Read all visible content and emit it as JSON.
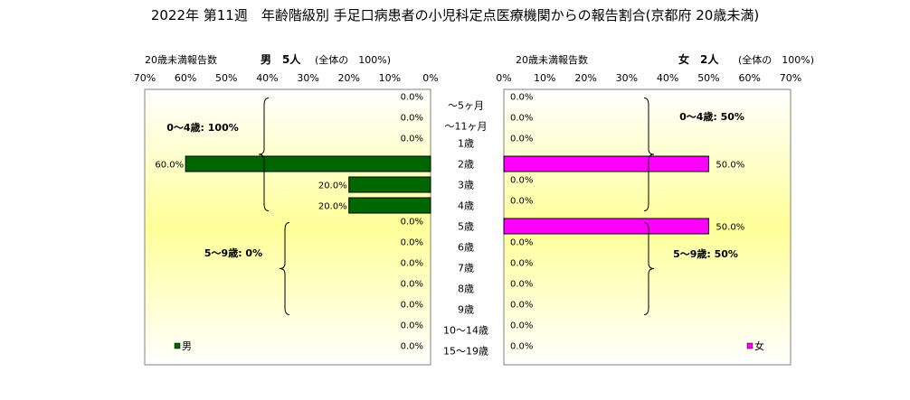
{
  "title": "2022年 第11週　年齢階級別 手足口病患者の小児科定点医療機関からの報告割合(京都府 20歳未満)",
  "chart_data": {
    "type": "bar",
    "categories": [
      "～5ヶ月",
      "～11ヶ月",
      "1歳",
      "2歳",
      "3歳",
      "4歳",
      "5歳",
      "6歳",
      "7歳",
      "8歳",
      "9歳",
      "10～14歳",
      "15～19歳"
    ],
    "series": [
      {
        "name": "男",
        "side": "left",
        "color": "#006600",
        "header_label": "20歳未満報告数",
        "header_count": "男　5人",
        "header_total": "(全体の　100%)",
        "values": [
          0,
          0,
          0,
          60,
          20,
          20,
          0,
          0,
          0,
          0,
          0,
          0,
          0
        ],
        "value_labels": [
          "0.0%",
          "0.0%",
          "0.0%",
          "60.0%",
          "20.0%",
          "20.0%",
          "0.0%",
          "0.0%",
          "0.0%",
          "0.0%",
          "0.0%",
          "0.0%",
          "0.0%"
        ],
        "legend": "男",
        "groups": [
          {
            "label": "0～4歳: 100%",
            "from": "～5ヶ月",
            "to": "4歳"
          },
          {
            "label": "5～9歳: 0%",
            "from": "5歳",
            "to": "9歳"
          }
        ]
      },
      {
        "name": "女",
        "side": "right",
        "color": "#ff00ff",
        "header_label": "20歳未満報告数",
        "header_count": "女　2人",
        "header_total": "(全体の　100%)",
        "values": [
          0,
          0,
          0,
          50,
          0,
          0,
          50,
          0,
          0,
          0,
          0,
          0,
          0
        ],
        "value_labels": [
          "0.0%",
          "0.0%",
          "0.0%",
          "50.0%",
          "0.0%",
          "0.0%",
          "50.0%",
          "0.0%",
          "0.0%",
          "0.0%",
          "0.0%",
          "0.0%",
          "0.0%"
        ],
        "legend": "女",
        "groups": [
          {
            "label": "0～4歳: 50%",
            "from": "～5ヶ月",
            "to": "4歳"
          },
          {
            "label": "5～9歳: 50%",
            "from": "5歳",
            "to": "9歳"
          }
        ]
      }
    ],
    "xlim": [
      0,
      70
    ],
    "x_ticks": [
      "0%",
      "10%",
      "20%",
      "30%",
      "40%",
      "50%",
      "60%",
      "70%"
    ],
    "grid": false,
    "legend_position": "bottom-left / bottom-right"
  }
}
